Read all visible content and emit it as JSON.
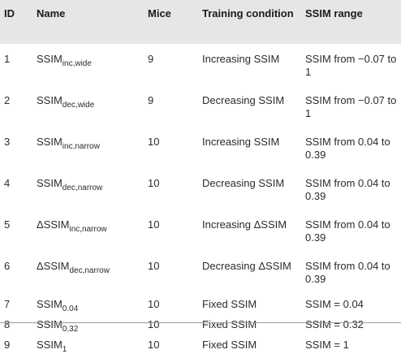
{
  "table": {
    "headers": {
      "id": "ID",
      "name": "Name",
      "mice": "Mice",
      "condition": "Training condition",
      "range": "SSIM range"
    },
    "rows": [
      {
        "id": "1",
        "name_main": "SSIM",
        "name_sub": "inc,wide",
        "mice": "9",
        "condition": "Increasing SSIM",
        "range": "SSIM from −0.07 to 1"
      },
      {
        "id": "2",
        "name_main": "SSIM",
        "name_sub": "dec,wide",
        "mice": "9",
        "condition": "Decreasing SSIM",
        "range": "SSIM from −0.07 to 1"
      },
      {
        "id": "3",
        "name_main": "SSIM",
        "name_sub": "inc,narrow",
        "mice": "10",
        "condition": "Increasing SSIM",
        "range": "SSIM from 0.04 to 0.39"
      },
      {
        "id": "4",
        "name_main": "SSIM",
        "name_sub": "dec,narrow",
        "mice": "10",
        "condition": "Decreasing SSIM",
        "range": "SSIM from 0.04 to 0.39"
      },
      {
        "id": "5",
        "name_main": "ΔSSIM",
        "name_sub": "inc,narrow",
        "mice": "10",
        "condition": "Increasing ΔSSIM",
        "range": "SSIM from 0.04 to 0.39"
      },
      {
        "id": "6",
        "name_main": "ΔSSIM",
        "name_sub": "dec,narrow",
        "mice": "10",
        "condition": "Decreasing ΔSSIM",
        "range": "SSIM from 0.04 to 0.39"
      },
      {
        "id": "7",
        "name_main": "SSIM",
        "name_sub": "0.04",
        "mice": "10",
        "condition": "Fixed SSIM",
        "range": "SSIM = 0.04"
      },
      {
        "id": "8",
        "name_main": "SSIM",
        "name_sub": "0.32",
        "mice": "10",
        "condition": "Fixed SSIM",
        "range": "SSIM = 0.32"
      },
      {
        "id": "9",
        "name_main": "SSIM",
        "name_sub": "1",
        "mice": "10",
        "condition": "Fixed SSIM",
        "range": "SSIM = 1"
      }
    ]
  }
}
